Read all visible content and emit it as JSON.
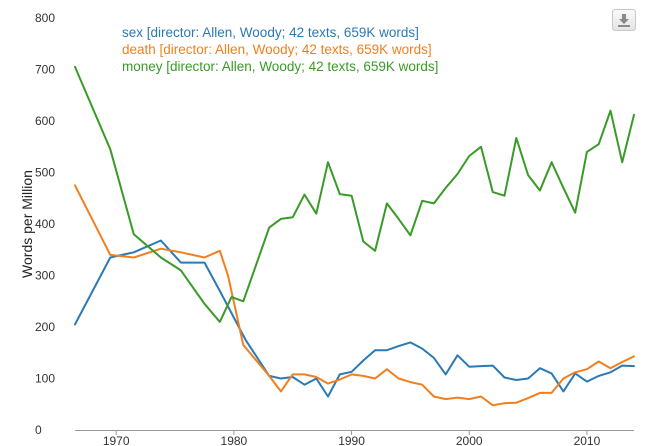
{
  "chart_data": {
    "type": "line",
    "title": "",
    "xlabel": "",
    "ylabel": "Words per Million",
    "xlim": [
      1966.5,
      2014
    ],
    "ylim": [
      0,
      800
    ],
    "xticks": [
      1970,
      1980,
      1990,
      2000,
      2010
    ],
    "yticks": [
      0,
      100,
      200,
      300,
      400,
      500,
      600,
      700,
      800
    ],
    "legend_position": "top-left",
    "series": [
      {
        "name": "sex [director: Allen, Woody; 42 texts, 659K words]",
        "color": "#2a7ab5",
        "x": [
          1966.5,
          1969.5,
          1971.5,
          1973.8,
          1975.5,
          1977.5,
          1978.8,
          1981,
          1983,
          1984,
          1985,
          1986,
          1987,
          1988,
          1989,
          1990,
          1991,
          1992,
          1993,
          1994,
          1995,
          1996,
          1997,
          1998,
          1999,
          2000,
          2001,
          2002,
          2003,
          2004,
          2005,
          2006,
          2007,
          2008,
          2009,
          2010,
          2011,
          2012,
          2013,
          2014
        ],
        "y": [
          205,
          335,
          345,
          368,
          325,
          325,
          270,
          175,
          105,
          100,
          103,
          88,
          100,
          65,
          108,
          113,
          135,
          155,
          155,
          163,
          170,
          158,
          140,
          108,
          145,
          123,
          124,
          125,
          102,
          97,
          100,
          120,
          110,
          75,
          110,
          94,
          105,
          112,
          125,
          124
        ]
      },
      {
        "name": "death [director: Allen, Woody; 42 texts, 659K words]",
        "color": "#f07f1f",
        "x": [
          1966.5,
          1969.5,
          1971.5,
          1973.8,
          1975.5,
          1977.5,
          1978.8,
          1979.5,
          1980.8,
          1983,
          1984,
          1985,
          1986,
          1987,
          1988,
          1989,
          1990,
          1991,
          1992,
          1993,
          1994,
          1995,
          1996,
          1997,
          1998,
          1999,
          2000,
          2001,
          2002,
          2003,
          2004,
          2005,
          2006,
          2007,
          2008,
          2009,
          2010,
          2011,
          2012,
          2013,
          2014
        ],
        "y": [
          475,
          340,
          335,
          352,
          345,
          335,
          348,
          300,
          165,
          105,
          75,
          108,
          108,
          103,
          90,
          98,
          108,
          105,
          100,
          118,
          100,
          93,
          88,
          65,
          60,
          63,
          60,
          65,
          48,
          52,
          53,
          62,
          72,
          72,
          100,
          112,
          118,
          133,
          120,
          132,
          143
        ]
      },
      {
        "name": "money [director: Allen, Woody; 42 texts, 659K words]",
        "color": "#3a9a28",
        "x": [
          1966.5,
          1969.5,
          1971.5,
          1973.8,
          1975.5,
          1977.5,
          1978.8,
          1979.8,
          1980.8,
          1983,
          1984,
          1985,
          1986,
          1987,
          1988,
          1989,
          1990,
          1991,
          1992,
          1993,
          1994,
          1995,
          1996,
          1997,
          1998,
          1999,
          2000,
          2001,
          2002,
          2003,
          2004,
          2005,
          2006,
          2007,
          2008,
          2009,
          2010,
          2011,
          2012,
          2013,
          2014
        ],
        "y": [
          705,
          545,
          380,
          335,
          310,
          245,
          210,
          258,
          250,
          393,
          410,
          413,
          457,
          420,
          520,
          458,
          455,
          366,
          348,
          440,
          410,
          378,
          445,
          440,
          470,
          497,
          532,
          550,
          462,
          455,
          567,
          495,
          465,
          520,
          470,
          422,
          540,
          555,
          620,
          520,
          612
        ]
      }
    ]
  }
}
